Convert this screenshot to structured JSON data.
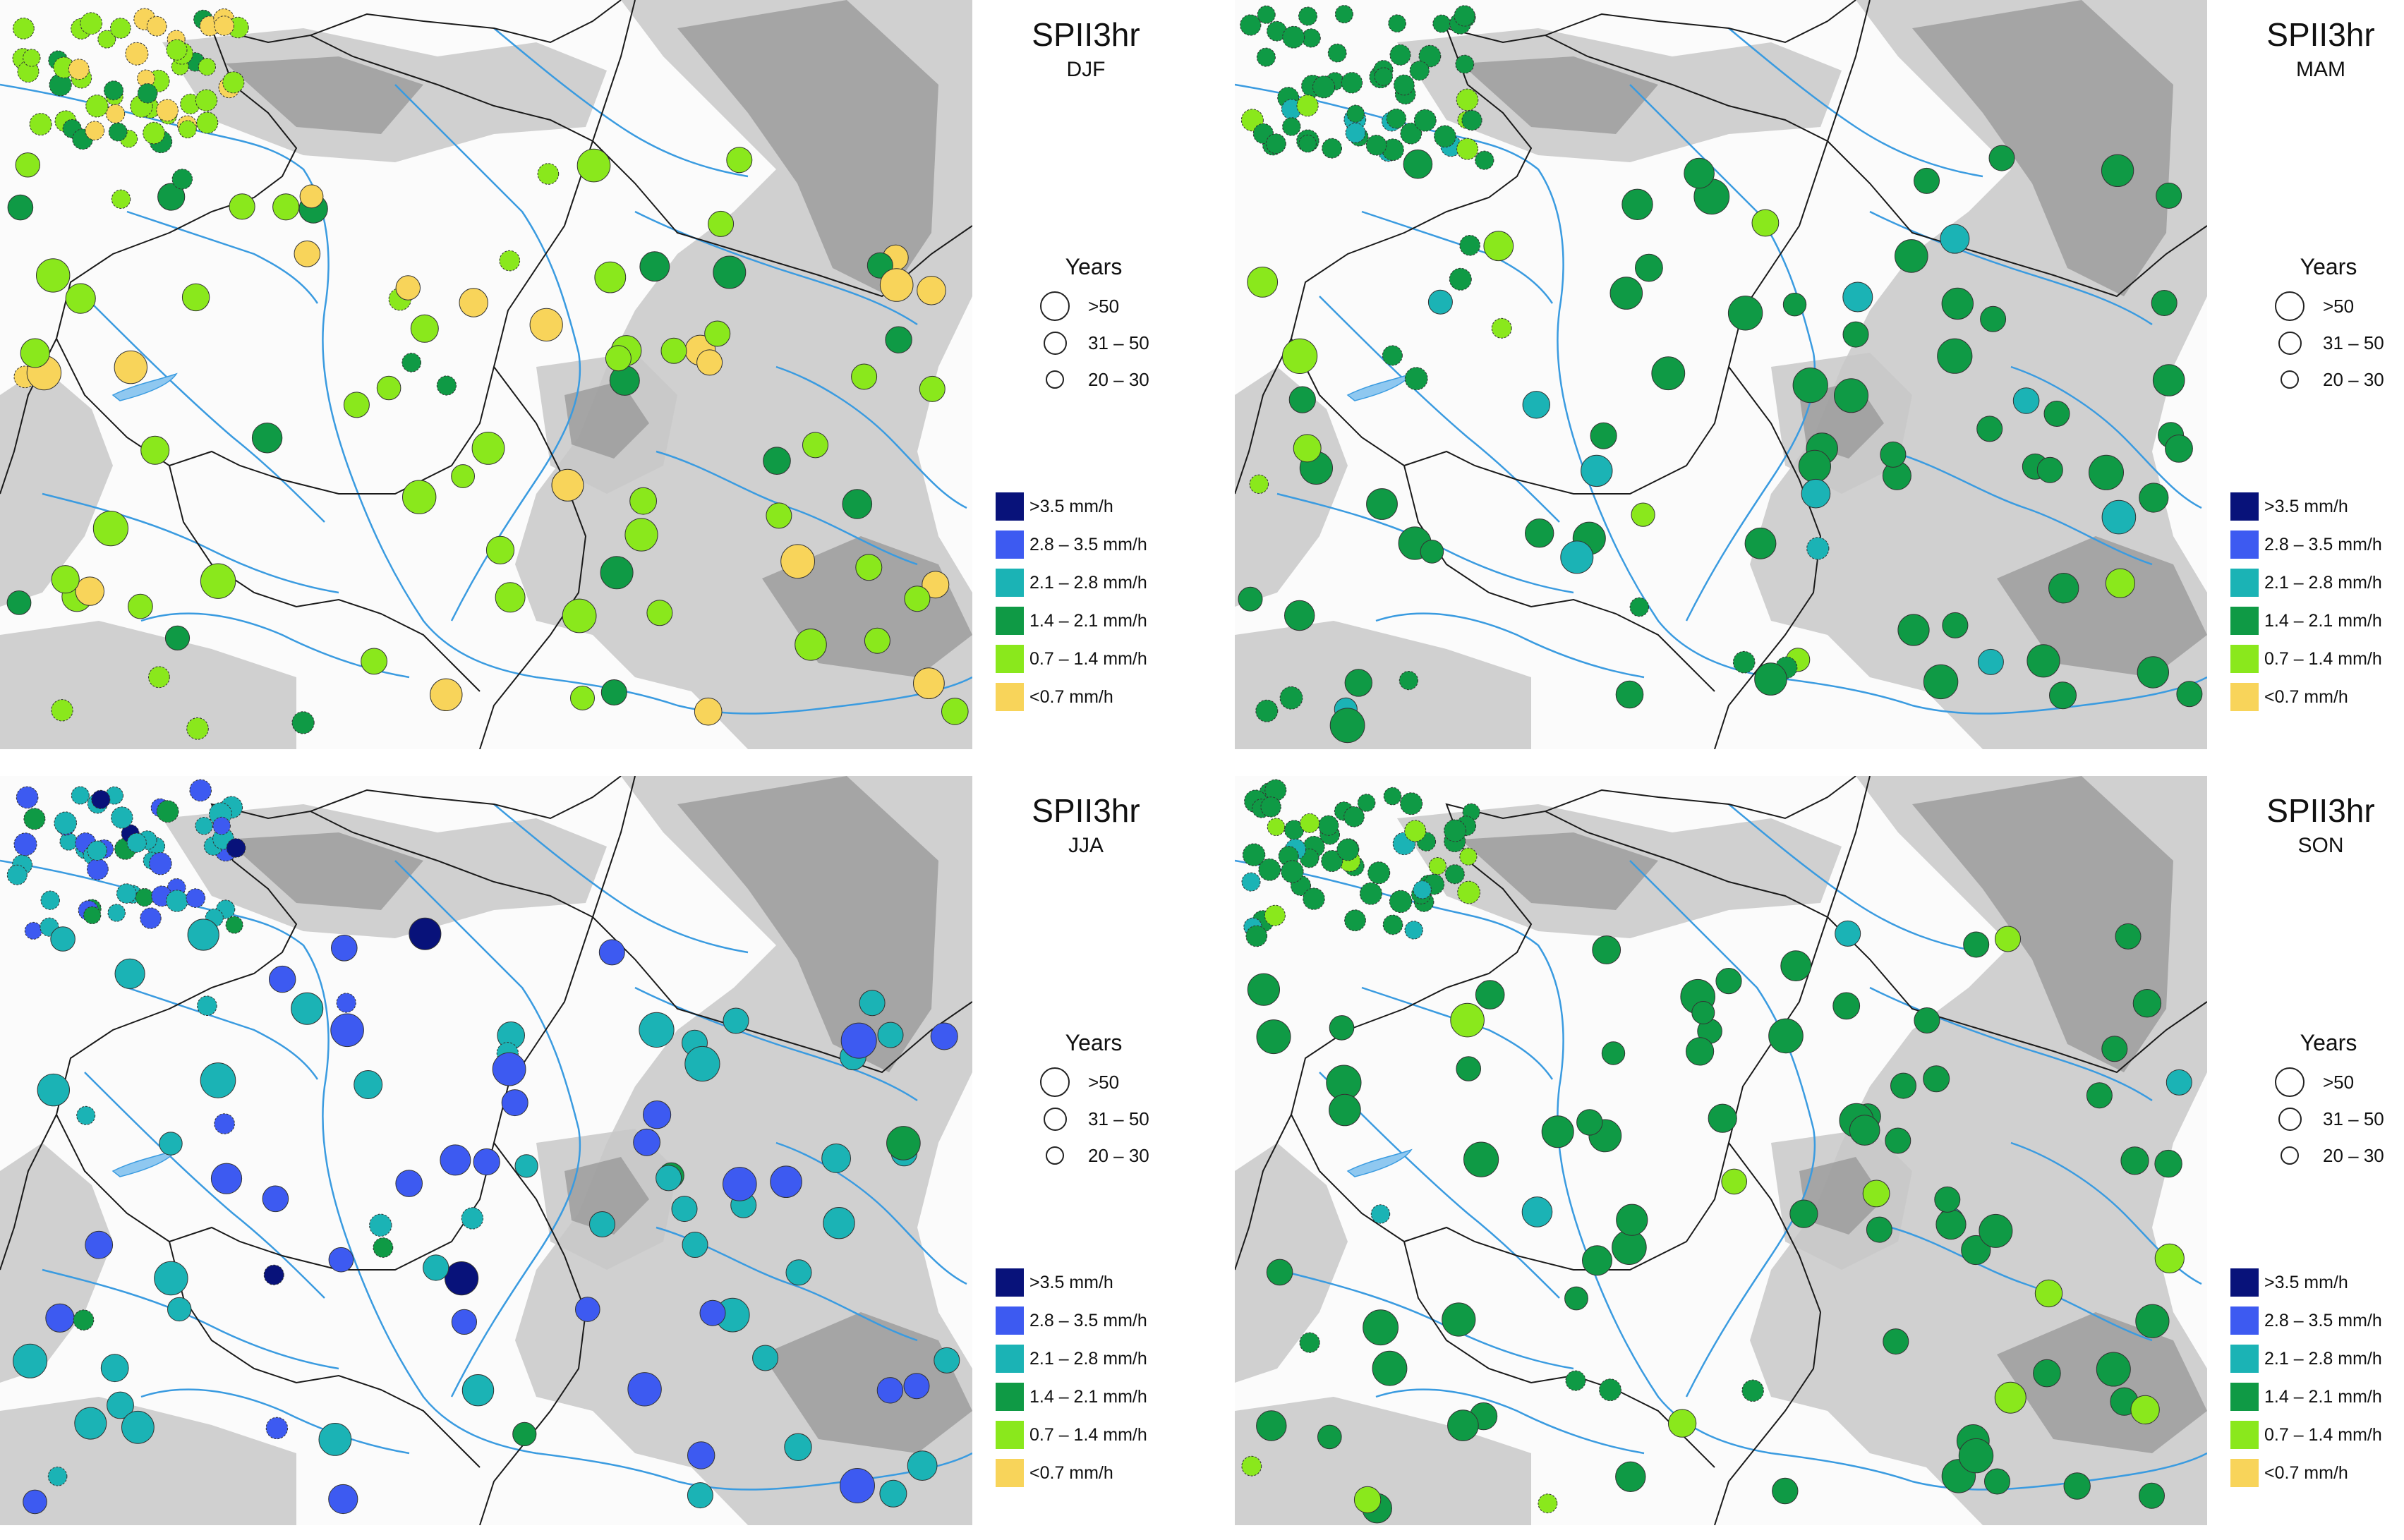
{
  "colors": {
    "c0": "#08127a",
    "c1": "#3d5af1",
    "c2": "#1bb3b5",
    "c3": "#0f9a45",
    "c4": "#8ae81c",
    "c5": "#f8d45a",
    "river": "#3a9be0",
    "border": "#1a1a1a"
  },
  "legend": {
    "years_title": "Years",
    "years_items": [
      ">50",
      "31 – 50",
      "20 – 30"
    ],
    "class_items": [
      ">3.5 mm/h",
      "2.8 – 3.5 mm/h",
      "2.1 – 2.8 mm/h",
      "1.4 – 2.1 mm/h",
      "0.7 – 1.4 mm/h",
      "<0.7 mm/h"
    ]
  },
  "panels": [
    {
      "title": "SPII3hr",
      "season": "DJF"
    },
    {
      "title": "SPII3hr",
      "season": "MAM"
    },
    {
      "title": "SPII3hr",
      "season": "JJA"
    },
    {
      "title": "SPII3hr",
      "season": "SON"
    }
  ]
}
